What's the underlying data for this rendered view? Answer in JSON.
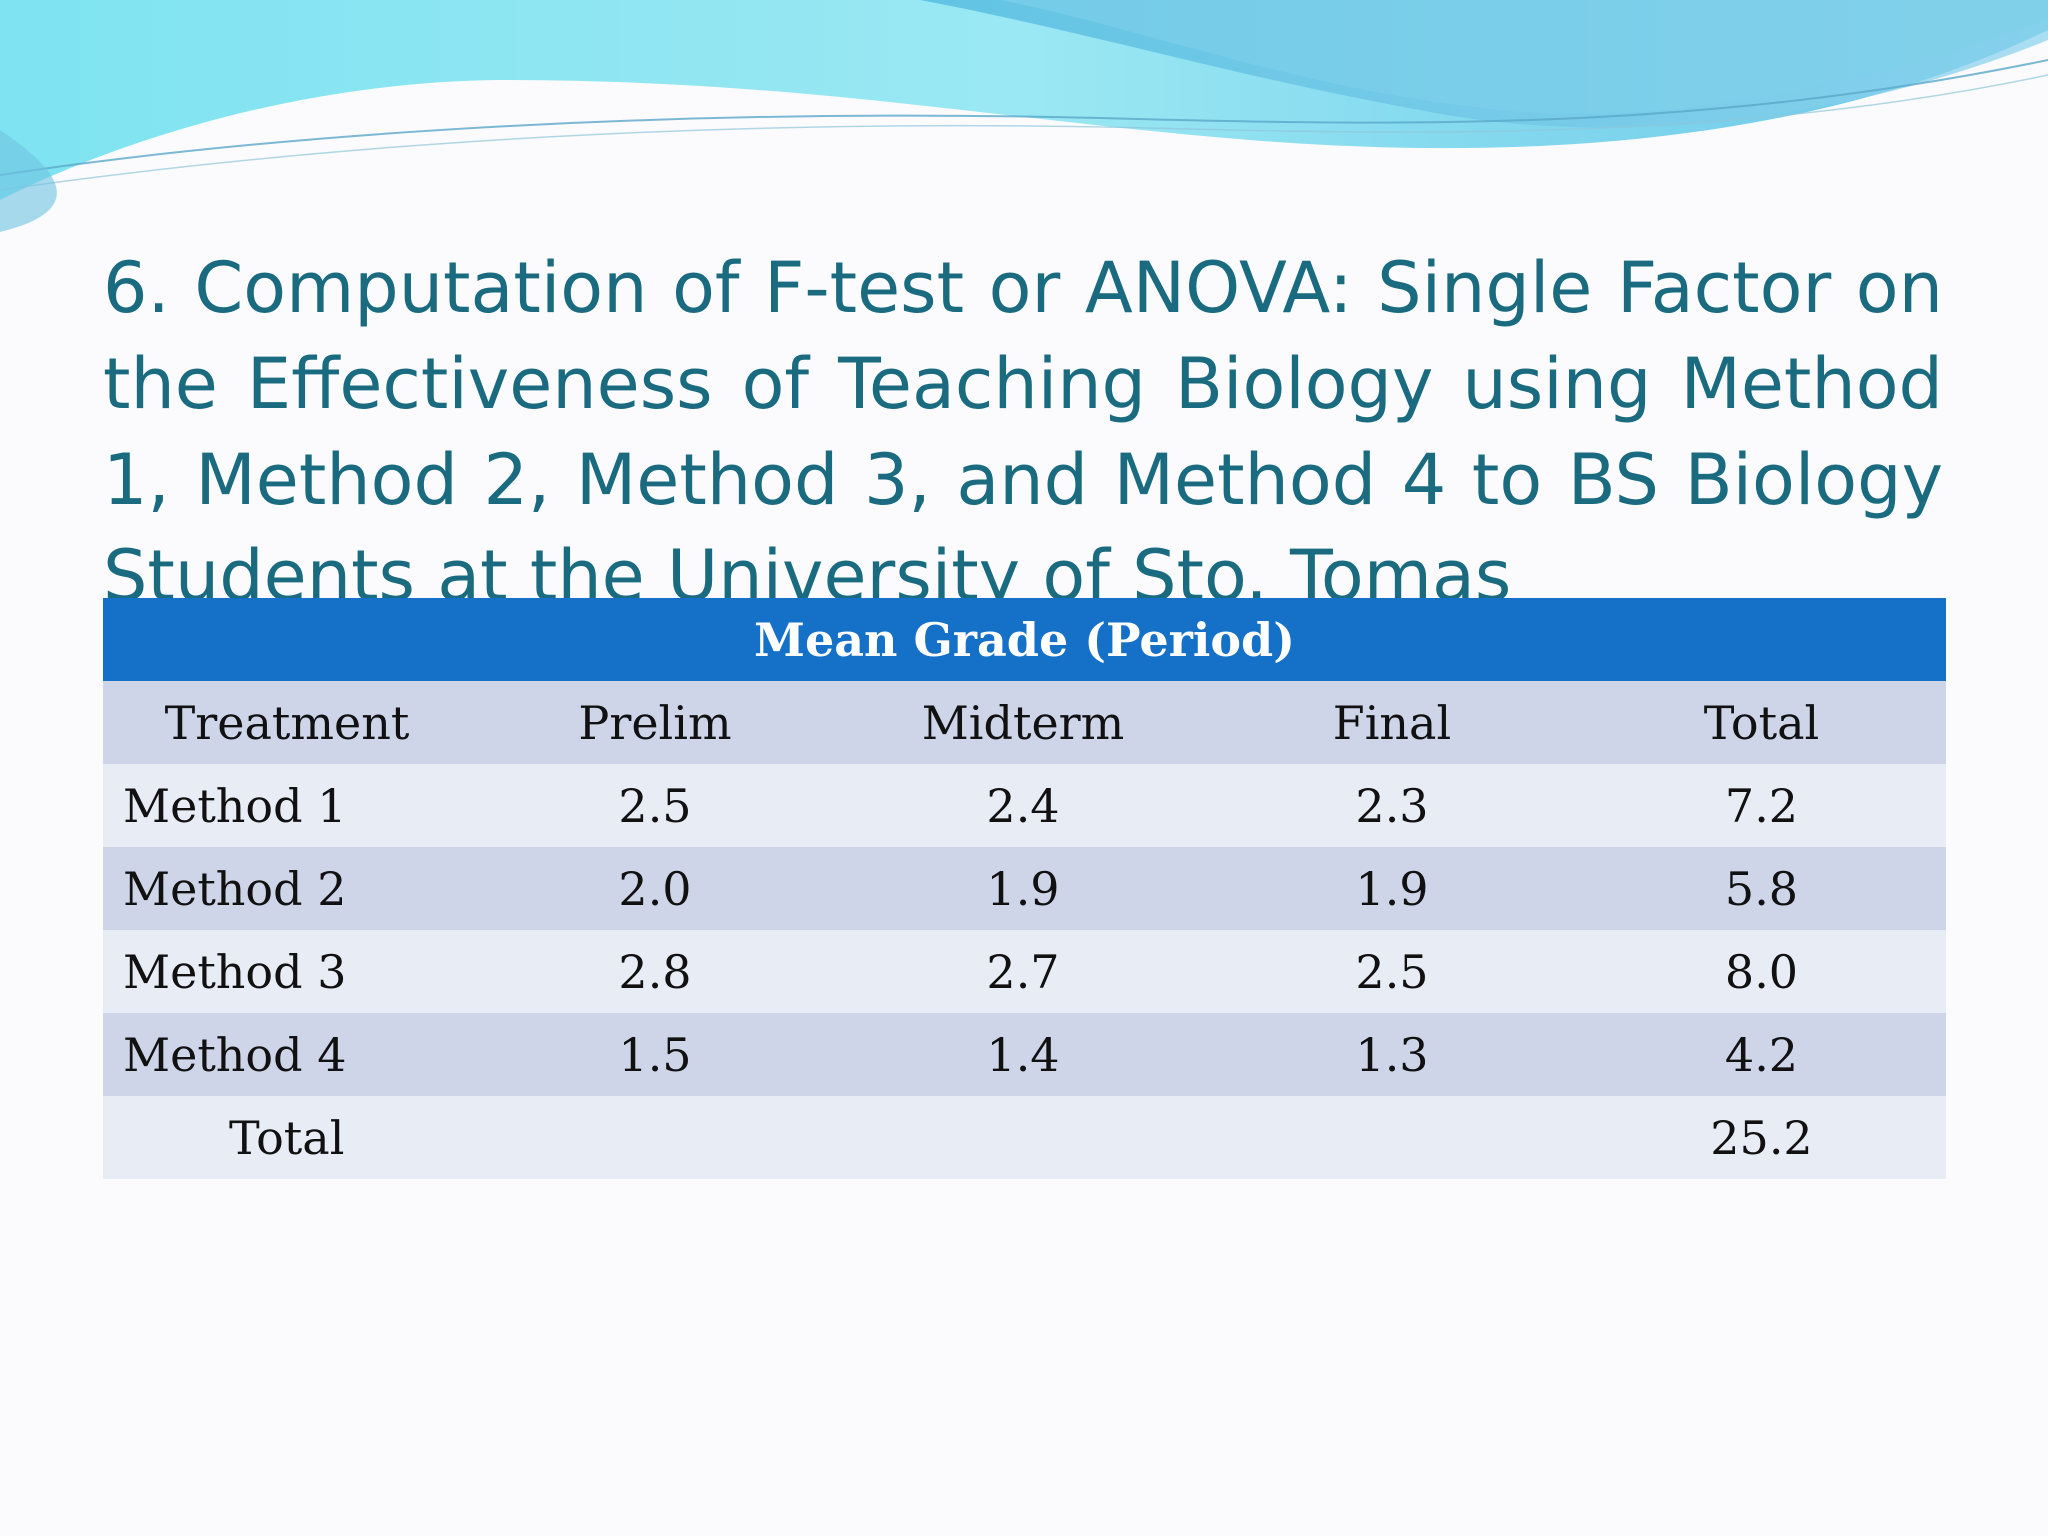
{
  "slide": {
    "title": "6. Computation of F-test or ANOVA: Single Factor on the Effectiveness of Teaching Biology using Method 1, Method 2, Method 3, and Method 4 to BS Biology Students at the University of Sto. Tomas"
  },
  "table": {
    "banner": "Mean Grade (Period)",
    "headers": [
      "Treatment",
      "Prelim",
      "Midterm",
      "Final",
      "Total"
    ],
    "rows": [
      {
        "treatment": "Method 1",
        "prelim": "2.5",
        "midterm": "2.4",
        "final": "2.3",
        "total": "7.2"
      },
      {
        "treatment": "Method 2",
        "prelim": "2.0",
        "midterm": "1.9",
        "final": "1.9",
        "total": "5.8"
      },
      {
        "treatment": "Method 3",
        "prelim": "2.8",
        "midterm": "2.7",
        "final": "2.5",
        "total": "8.0"
      },
      {
        "treatment": "Method 4",
        "prelim": "1.5",
        "midterm": "1.4",
        "final": "1.3",
        "total": "4.2"
      }
    ],
    "grand_total": {
      "label": "Total",
      "value": "25.2"
    }
  },
  "colors": {
    "title": "#1a6b80",
    "banner": "#1570c8",
    "header_row": "#ced5e9",
    "row_light": "#e8ecf5",
    "row_dark": "#ced5e9",
    "wave_light": "#8ee6f2",
    "wave_mid": "#5cc4e4"
  }
}
